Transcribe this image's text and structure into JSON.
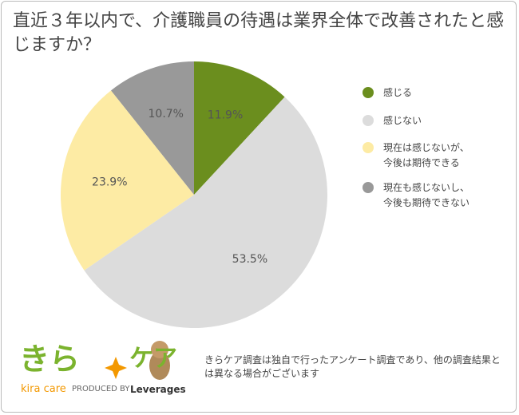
{
  "chart_data": {
    "type": "pie",
    "title": "直近３年以内で、介護職員の待遇は業界全体で改善されたと感じますか？",
    "categories": [
      "感じる",
      "感じない",
      "現在は感じないが、\n今後は期待できる",
      "現在も感じないし、\n今後も期待できない"
    ],
    "values": [
      11.9,
      53.5,
      23.9,
      10.7
    ],
    "value_labels": [
      "11.9%",
      "53.5%",
      "23.9%",
      "10.7%"
    ],
    "colors": [
      "#6b8e1e",
      "#dcdcdc",
      "#fdeba4",
      "#999999"
    ],
    "legend": "right"
  },
  "branding": {
    "logo_left": "きら",
    "logo_right": "ケア",
    "tagline": "kira care",
    "produced_by": "PRODUCED BY",
    "company": "Leverages"
  },
  "note": "きらケア調査は独自で行ったアンケート調査であり、他の調査結果とは異なる場合がございます"
}
